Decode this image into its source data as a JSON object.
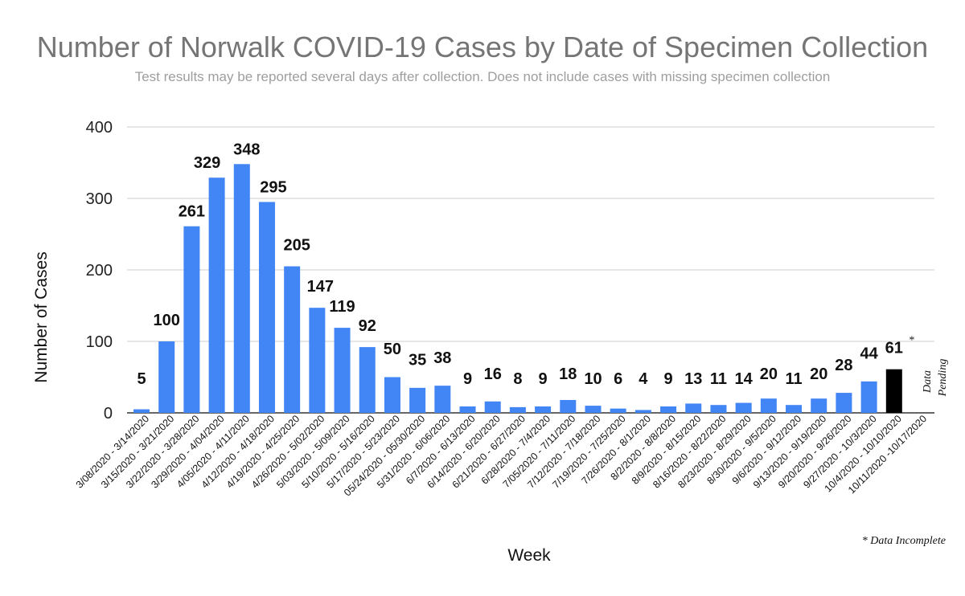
{
  "chart_data": {
    "type": "bar",
    "title": "Number of Norwalk COVID-19 Cases by Date of Specimen Collection",
    "subtitle": "Test results may be reported several days after collection. Does not include cases with missing specimen collection",
    "xlabel": "Week",
    "ylabel": "Number of Cases",
    "ylim": [
      0,
      400
    ],
    "yticks": [
      "0",
      "100",
      "200",
      "300",
      "400"
    ],
    "grid": true,
    "categories": [
      "3/08/2020 - 3/14/2020",
      "3/15/2020 - 3/21/2020",
      "3/22/2020 - 3/28/2020",
      "3/29/2020 - 4/04/2020",
      "4/05/2020 - 4/11/2020",
      "4/12/2020 - 4/18/2020",
      "4/19/2020 - 4/25/2020",
      "4/26/2020 - 5/02/2020",
      "5/03/2020 - 5/09/2020",
      "5/10/2020 - 5/16/2020",
      "5/17/2020 - 5/23/2020",
      "05/24/2020 - 05/30/2020",
      "5/31/2020 - 6/06/2020",
      "6/7/2020 - 6/13/2020",
      "6/14/2020 - 6/20/2020",
      "6/21/2020 - 6/27/2020",
      "6/28/2020 - 7/4/2020",
      "7/05/2020 - 7/11/2020",
      "7/12/2020 - 7/18/2020",
      "7/19/2020 - 7/25/2020",
      "7/26/2020 - 8/1/2020",
      "8/2/2020 - 8/8/2020",
      "8/9/2020 - 8/15/2020",
      "8/16/2020 - 8/22/2020",
      "8/23/2020 - 8/29/2020",
      "8/30/2020 - 9/5/2020",
      "9/6/2020 - 9/12/2020",
      "9/13/2020 - 9/19/2020",
      "9/20/2020 - 9/26/2020",
      "9/27/2020 - 10/3/2020",
      "10/4/2020 - 10/10/2020",
      "10/11/2020 -10/17/2020"
    ],
    "values": [
      5,
      100,
      261,
      329,
      348,
      295,
      205,
      147,
      119,
      92,
      50,
      35,
      38,
      9,
      16,
      8,
      9,
      18,
      10,
      6,
      4,
      9,
      13,
      11,
      14,
      20,
      11,
      20,
      28,
      44,
      61,
      null
    ],
    "value_labels": [
      "5",
      "100",
      "261",
      "329",
      "348",
      "295",
      "205",
      "147",
      "119",
      "92",
      "50",
      "35",
      "38",
      "9",
      "16",
      "8",
      "9",
      "18",
      "10",
      "6",
      "4",
      "9",
      "13",
      "11",
      "14",
      "20",
      "11",
      "20",
      "28",
      "44",
      "61",
      ""
    ],
    "bar_color": "#4285f4",
    "highlight_color": "#000000",
    "highlight_index": 30,
    "incomplete_marker": "*",
    "pending_label_line1": "Data",
    "pending_label_line2": "Pending",
    "footnote": "* Data Incomplete"
  }
}
